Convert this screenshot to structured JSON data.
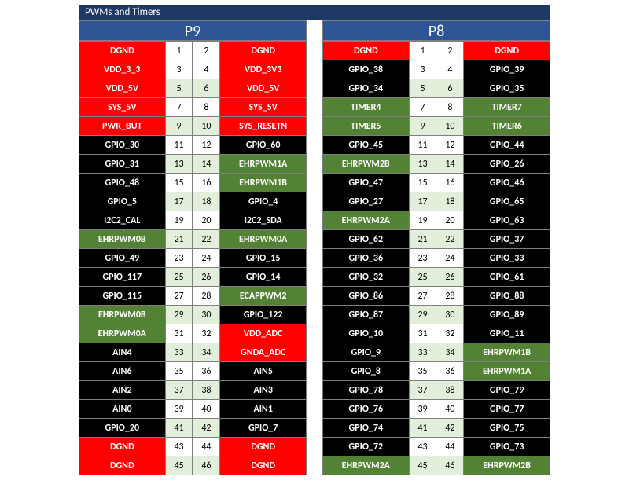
{
  "title": "PWMs and Timers",
  "colors": {
    "title_bg": "#1f3864",
    "header_bg": "#2f5597",
    "red": "#ff0000",
    "black": "#000000",
    "green": "#548235",
    "shade_white": "#ffffff",
    "shade_green": "#e2efda",
    "border": "#7f7f7f",
    "text_light": "#ffffff"
  },
  "headers": {
    "left": "P9",
    "right": "P8"
  },
  "left": [
    {
      "ln": 1,
      "rn": 2,
      "sh": "w",
      "l": {
        "t": "DGND",
        "c": "red"
      },
      "r": {
        "t": "DGND",
        "c": "red"
      }
    },
    {
      "ln": 3,
      "rn": 4,
      "sh": "w",
      "l": {
        "t": "VDD_3_3",
        "c": "red"
      },
      "r": {
        "t": "VDD_3V3",
        "c": "red"
      }
    },
    {
      "ln": 5,
      "rn": 6,
      "sh": "g",
      "l": {
        "t": "VDD_5V",
        "c": "red"
      },
      "r": {
        "t": "VDD_5V",
        "c": "red"
      }
    },
    {
      "ln": 7,
      "rn": 8,
      "sh": "w",
      "l": {
        "t": "SYS_5V",
        "c": "red"
      },
      "r": {
        "t": "SYS_5V",
        "c": "red"
      }
    },
    {
      "ln": 9,
      "rn": 10,
      "sh": "g",
      "l": {
        "t": "PWR_BUT",
        "c": "red"
      },
      "r": {
        "t": "SYS_RESETN",
        "c": "red"
      }
    },
    {
      "ln": 11,
      "rn": 12,
      "sh": "w",
      "l": {
        "t": "GPIO_30",
        "c": "black"
      },
      "r": {
        "t": "GPIO_60",
        "c": "black"
      }
    },
    {
      "ln": 13,
      "rn": 14,
      "sh": "g",
      "l": {
        "t": "GPIO_31",
        "c": "black"
      },
      "r": {
        "t": "EHRPWM1A",
        "c": "green"
      }
    },
    {
      "ln": 15,
      "rn": 16,
      "sh": "w",
      "l": {
        "t": "GPIO_48",
        "c": "black"
      },
      "r": {
        "t": "EHRPWM1B",
        "c": "green"
      }
    },
    {
      "ln": 17,
      "rn": 18,
      "sh": "g",
      "l": {
        "t": "GPIO_5",
        "c": "black"
      },
      "r": {
        "t": "GPIO_4",
        "c": "black"
      }
    },
    {
      "ln": 19,
      "rn": 20,
      "sh": "w",
      "l": {
        "t": "I2C2_CAL",
        "c": "black"
      },
      "r": {
        "t": "I2C2_SDA",
        "c": "black"
      }
    },
    {
      "ln": 21,
      "rn": 22,
      "sh": "g",
      "l": {
        "t": "EHRPWM0B",
        "c": "green"
      },
      "r": {
        "t": "EHRPWM0A",
        "c": "green"
      }
    },
    {
      "ln": 23,
      "rn": 24,
      "sh": "w",
      "l": {
        "t": "GPIO_49",
        "c": "black"
      },
      "r": {
        "t": "GPIO_15",
        "c": "black"
      }
    },
    {
      "ln": 25,
      "rn": 26,
      "sh": "g",
      "l": {
        "t": "GPIO_117",
        "c": "black"
      },
      "r": {
        "t": "GPIO_14",
        "c": "black"
      }
    },
    {
      "ln": 27,
      "rn": 28,
      "sh": "w",
      "l": {
        "t": "GPIO_115",
        "c": "black"
      },
      "r": {
        "t": "ECAPPWM2",
        "c": "green"
      }
    },
    {
      "ln": 29,
      "rn": 30,
      "sh": "g",
      "l": {
        "t": "EHRPWM0B",
        "c": "green"
      },
      "r": {
        "t": "GPIO_122",
        "c": "black"
      }
    },
    {
      "ln": 31,
      "rn": 32,
      "sh": "w",
      "l": {
        "t": "EHRPWM0A",
        "c": "green"
      },
      "r": {
        "t": "VDD_ADC",
        "c": "red"
      }
    },
    {
      "ln": 33,
      "rn": 34,
      "sh": "g",
      "l": {
        "t": "AIN4",
        "c": "black"
      },
      "r": {
        "t": "GNDA_ADC",
        "c": "red"
      }
    },
    {
      "ln": 35,
      "rn": 36,
      "sh": "w",
      "l": {
        "t": "AIN6",
        "c": "black"
      },
      "r": {
        "t": "AIN5",
        "c": "black"
      }
    },
    {
      "ln": 37,
      "rn": 38,
      "sh": "g",
      "l": {
        "t": "AIN2",
        "c": "black"
      },
      "r": {
        "t": "AIN3",
        "c": "black"
      }
    },
    {
      "ln": 39,
      "rn": 40,
      "sh": "w",
      "l": {
        "t": "AIN0",
        "c": "black"
      },
      "r": {
        "t": "AIN1",
        "c": "black"
      }
    },
    {
      "ln": 41,
      "rn": 42,
      "sh": "g",
      "l": {
        "t": "GPIO_20",
        "c": "black"
      },
      "r": {
        "t": "GPIO_7",
        "c": "black"
      }
    },
    {
      "ln": 43,
      "rn": 44,
      "sh": "w",
      "l": {
        "t": "DGND",
        "c": "red"
      },
      "r": {
        "t": "DGND",
        "c": "red"
      }
    },
    {
      "ln": 45,
      "rn": 46,
      "sh": "g",
      "l": {
        "t": "DGND",
        "c": "red"
      },
      "r": {
        "t": "DGND",
        "c": "red"
      }
    }
  ],
  "right": [
    {
      "ln": 1,
      "rn": 2,
      "sh": "w",
      "l": {
        "t": "DGND",
        "c": "red"
      },
      "r": {
        "t": "DGND",
        "c": "red"
      }
    },
    {
      "ln": 3,
      "rn": 4,
      "sh": "w",
      "l": {
        "t": "GPIO_38",
        "c": "black"
      },
      "r": {
        "t": "GPIO_39",
        "c": "black"
      }
    },
    {
      "ln": 5,
      "rn": 6,
      "sh": "g",
      "l": {
        "t": "GPIO_34",
        "c": "black"
      },
      "r": {
        "t": "GPIO_35",
        "c": "black"
      }
    },
    {
      "ln": 7,
      "rn": 8,
      "sh": "w",
      "l": {
        "t": "TIMER4",
        "c": "green"
      },
      "r": {
        "t": "TIMER7",
        "c": "green"
      }
    },
    {
      "ln": 9,
      "rn": 10,
      "sh": "g",
      "l": {
        "t": "TIMER5",
        "c": "green"
      },
      "r": {
        "t": "TIMER6",
        "c": "green"
      }
    },
    {
      "ln": 11,
      "rn": 12,
      "sh": "w",
      "l": {
        "t": "GPIO_45",
        "c": "black"
      },
      "r": {
        "t": "GPIO_44",
        "c": "black"
      }
    },
    {
      "ln": 13,
      "rn": 14,
      "sh": "g",
      "l": {
        "t": "EHRPWM2B",
        "c": "green"
      },
      "r": {
        "t": "GPIO_26",
        "c": "black"
      }
    },
    {
      "ln": 15,
      "rn": 16,
      "sh": "w",
      "l": {
        "t": "GPIO_47",
        "c": "black"
      },
      "r": {
        "t": "GPIO_46",
        "c": "black"
      }
    },
    {
      "ln": 17,
      "rn": 18,
      "sh": "g",
      "l": {
        "t": "GPIO_27",
        "c": "black"
      },
      "r": {
        "t": "GPIO_65",
        "c": "black"
      }
    },
    {
      "ln": 19,
      "rn": 20,
      "sh": "w",
      "l": {
        "t": "EHRPWM2A",
        "c": "green"
      },
      "r": {
        "t": "GPIO_63",
        "c": "black"
      }
    },
    {
      "ln": 21,
      "rn": 22,
      "sh": "g",
      "l": {
        "t": "GPIO_62",
        "c": "black"
      },
      "r": {
        "t": "GPIO_37",
        "c": "black"
      }
    },
    {
      "ln": 23,
      "rn": 24,
      "sh": "w",
      "l": {
        "t": "GPIO_36",
        "c": "black"
      },
      "r": {
        "t": "GPIO_33",
        "c": "black"
      }
    },
    {
      "ln": 25,
      "rn": 26,
      "sh": "g",
      "l": {
        "t": "GPIO_32",
        "c": "black"
      },
      "r": {
        "t": "GPIO_61",
        "c": "black"
      }
    },
    {
      "ln": 27,
      "rn": 28,
      "sh": "w",
      "l": {
        "t": "GPIO_86",
        "c": "black"
      },
      "r": {
        "t": "GPIO_88",
        "c": "black"
      }
    },
    {
      "ln": 29,
      "rn": 30,
      "sh": "g",
      "l": {
        "t": "GPIO_87",
        "c": "black"
      },
      "r": {
        "t": "GPIO_89",
        "c": "black"
      }
    },
    {
      "ln": 31,
      "rn": 32,
      "sh": "w",
      "l": {
        "t": "GPIO_10",
        "c": "black"
      },
      "r": {
        "t": "GPIO_11",
        "c": "black"
      }
    },
    {
      "ln": 33,
      "rn": 34,
      "sh": "g",
      "l": {
        "t": "GPIO_9",
        "c": "black"
      },
      "r": {
        "t": "EHRPWM1B",
        "c": "green"
      }
    },
    {
      "ln": 35,
      "rn": 36,
      "sh": "w",
      "l": {
        "t": "GPIO_8",
        "c": "black"
      },
      "r": {
        "t": "EHRPWM1A",
        "c": "green"
      }
    },
    {
      "ln": 37,
      "rn": 38,
      "sh": "g",
      "l": {
        "t": "GPIO_78",
        "c": "black"
      },
      "r": {
        "t": "GPIO_79",
        "c": "black"
      }
    },
    {
      "ln": 39,
      "rn": 40,
      "sh": "w",
      "l": {
        "t": "GPIO_76",
        "c": "black"
      },
      "r": {
        "t": "GPIO_77",
        "c": "black"
      }
    },
    {
      "ln": 41,
      "rn": 42,
      "sh": "g",
      "l": {
        "t": "GPIO_74",
        "c": "black"
      },
      "r": {
        "t": "GPIO_75",
        "c": "black"
      }
    },
    {
      "ln": 43,
      "rn": 44,
      "sh": "w",
      "l": {
        "t": "GPIO_72",
        "c": "black"
      },
      "r": {
        "t": "GPIO_73",
        "c": "black"
      }
    },
    {
      "ln": 45,
      "rn": 46,
      "sh": "g",
      "l": {
        "t": "EHRPWM2A",
        "c": "green"
      },
      "r": {
        "t": "EHRPWM2B",
        "c": "green"
      }
    }
  ]
}
